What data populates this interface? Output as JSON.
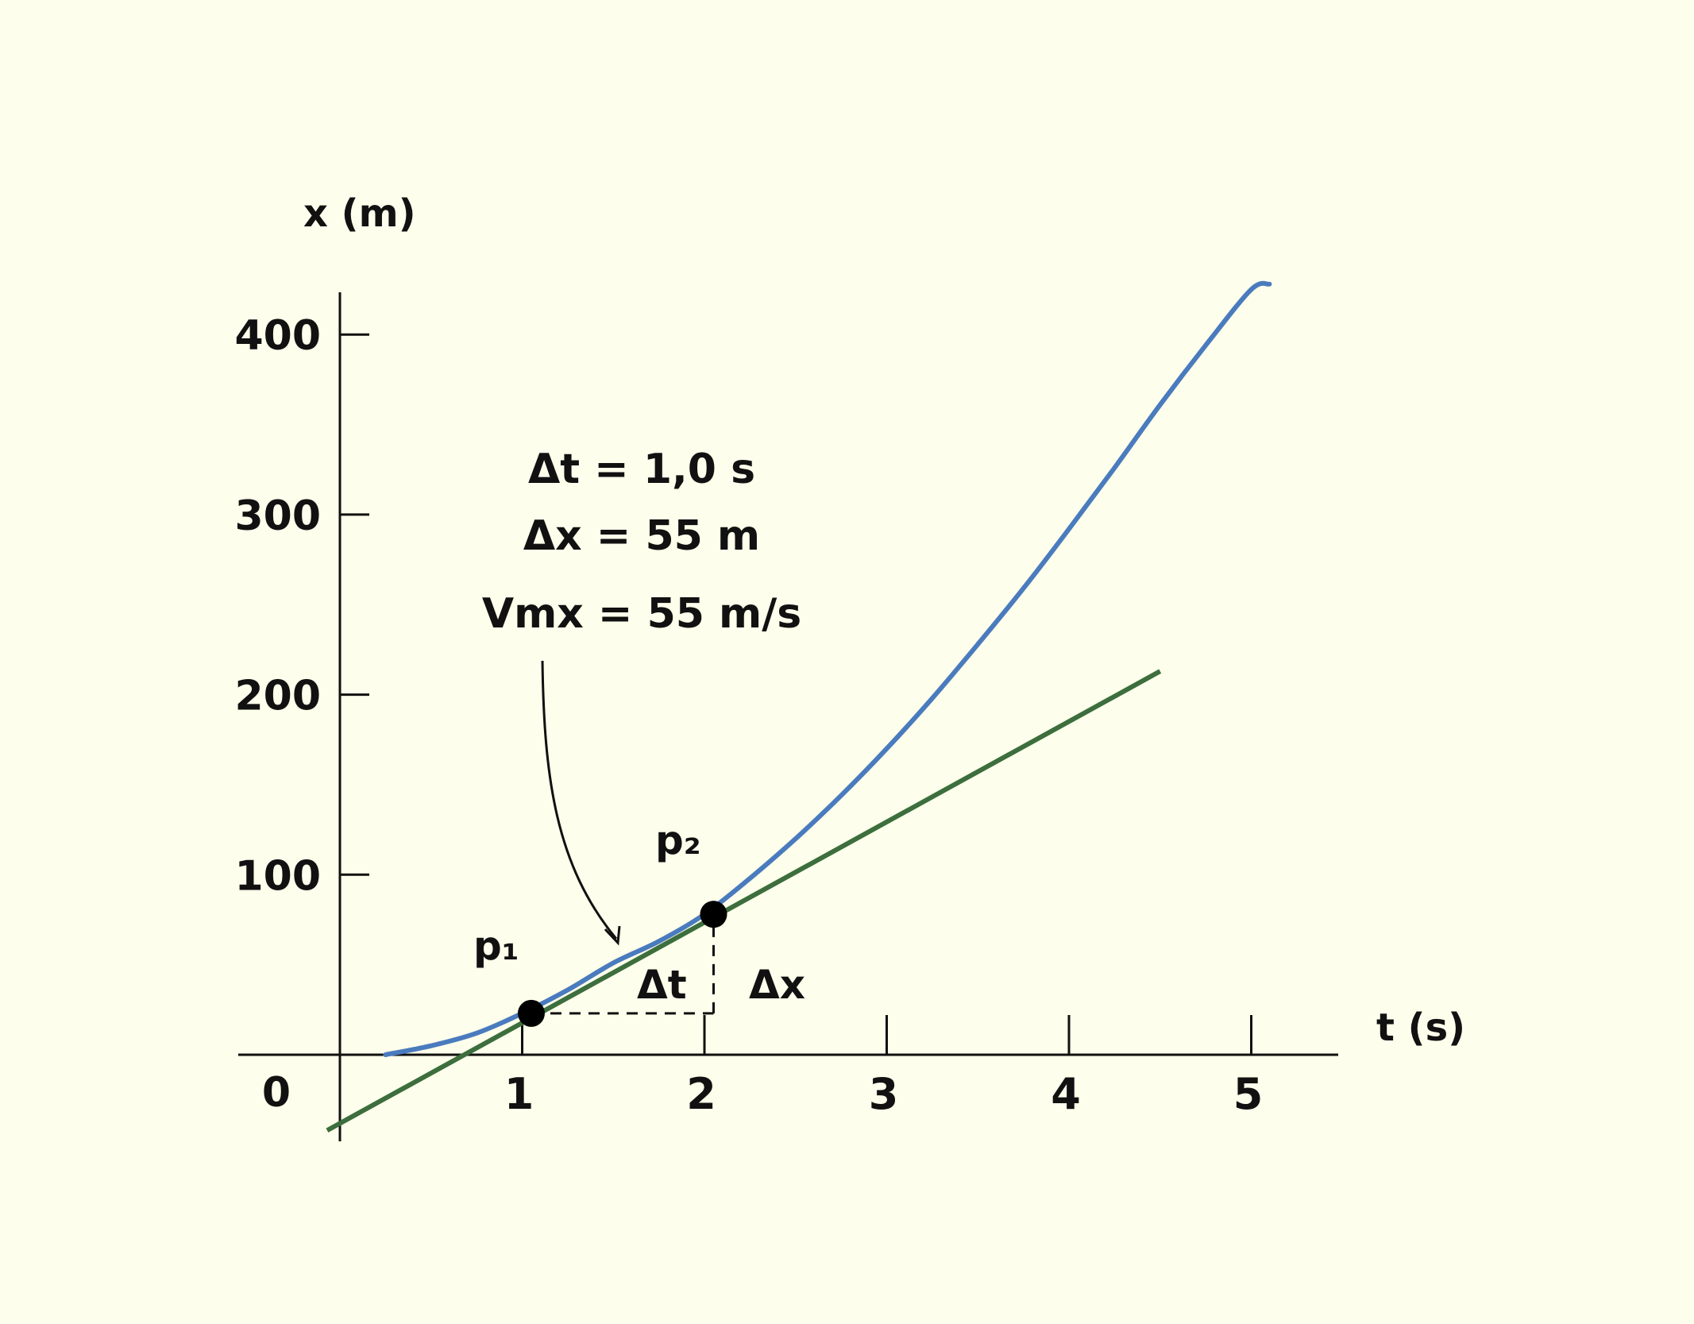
{
  "colors": {
    "background": "#fdfeeb",
    "curve": "#4a7bbe",
    "secant": "#3d6e3d",
    "axis": "#111111",
    "point": "#000000"
  },
  "chart_data": {
    "type": "line",
    "xlabel": "t (s)",
    "ylabel": "x (m)",
    "origin_label": "0",
    "xlim": [
      0,
      5.5
    ],
    "ylim": [
      -45,
      420
    ],
    "x_ticks": [
      1,
      2,
      3,
      4,
      5
    ],
    "x_tick_labels": [
      "1",
      "2",
      "3",
      "4",
      "5"
    ],
    "y_ticks": [
      100,
      200,
      300,
      400
    ],
    "y_tick_labels": [
      "100",
      "200",
      "300",
      "400"
    ],
    "series": [
      {
        "kind": "curve",
        "color": "#4a7bbe",
        "x": [
          0.25,
          0.5,
          0.75,
          1.0,
          1.25,
          1.5,
          1.75,
          2.0,
          2.25,
          2.5,
          2.75,
          3.0,
          3.25,
          3.5,
          3.75,
          4.0,
          4.25,
          4.5,
          4.75,
          5.0,
          5.1
        ],
        "y": [
          0,
          5,
          12,
          23,
          36,
          51,
          63,
          78,
          98,
          120,
          144,
          170,
          198,
          228,
          259,
          292,
          326,
          361,
          394,
          425,
          428
        ]
      },
      {
        "kind": "secant",
        "color": "#3d6e3d",
        "x": [
          -0.07,
          4.5
        ],
        "y": [
          -42,
          213
        ]
      }
    ],
    "points": [
      {
        "name": "p₁",
        "x": 1.05,
        "y": 23
      },
      {
        "name": "p₂",
        "x": 2.05,
        "y": 78
      }
    ],
    "delta_labels": {
      "dt": "Δt",
      "dx": "Δx"
    },
    "annotation": {
      "lines": [
        "Δt = 1,0 s",
        "Δx = 55 m",
        "Vmx = 55 m/s"
      ]
    }
  }
}
